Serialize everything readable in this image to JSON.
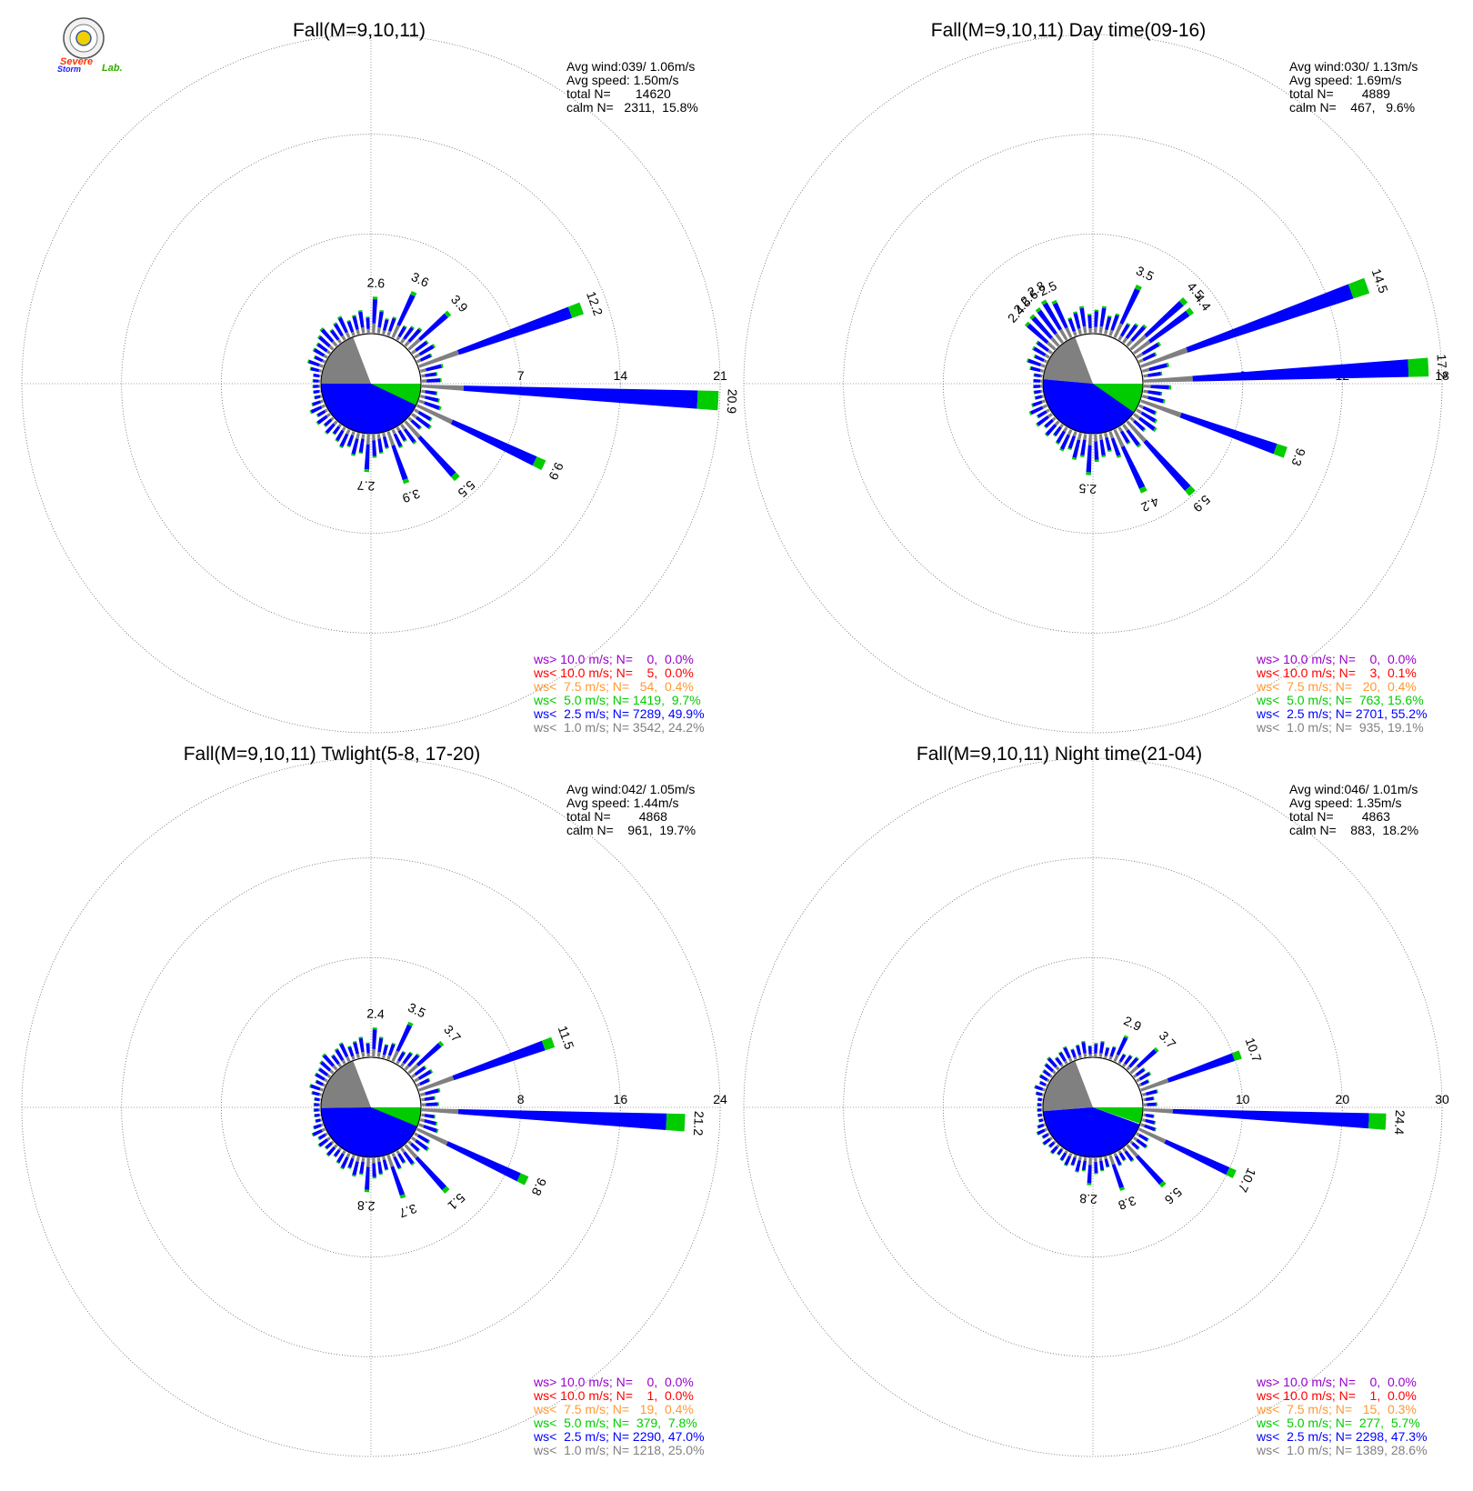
{
  "logo": {
    "word1": "Severe",
    "word2": "Storm",
    "word3": "Lab."
  },
  "colors": {
    "gray": "#808080",
    "blue": "#0000ff",
    "green": "#00cc00",
    "orange": "#ff9933",
    "red": "#ff0000",
    "purple": "#9900cc",
    "black": "#000000"
  },
  "chart_data": [
    {
      "type": "windrose",
      "title": "Fall(M=9,10,11)",
      "stats": [
        "Avg wind:039/ 1.06m/s",
        "Avg speed: 1.50m/s",
        "total N=       14620",
        "calm N=   2311,  15.8%"
      ],
      "rings": [
        7,
        14,
        21
      ],
      "ring_labels": [
        "7",
        "14",
        "21"
      ],
      "labeled_bars": [
        {
          "dir": 16,
          "value": 2.6,
          "label": "2.6"
        },
        {
          "dir": 20,
          "value": 3.6,
          "label": "3.6"
        },
        {
          "dir": 24,
          "value": 3.9,
          "label": "3.9"
        },
        {
          "dir": 28,
          "value": 12.2,
          "label": "12.2"
        },
        {
          "dir": 32,
          "value": 20.9,
          "label": "20.9"
        },
        {
          "dir": 36,
          "value": 9.9,
          "label": "9.9"
        },
        {
          "dir": 40,
          "value": 5.5,
          "label": "5.5"
        },
        {
          "dir": 44,
          "value": 3.9,
          "label": "3.9"
        },
        {
          "dir": 48,
          "value": 2.7,
          "label": "2.7"
        }
      ],
      "calm_shares": {
        "gray": 24.2,
        "blue": 49.9,
        "green": 9.7
      },
      "legend": [
        {
          "color": "purple",
          "text": "ws> 10.0 m/s; N=    0,  0.0%"
        },
        {
          "color": "red",
          "text": "ws< 10.0 m/s; N=    5,  0.0%"
        },
        {
          "color": "orange",
          "text": "ws<  7.5 m/s; N=   54,  0.4%"
        },
        {
          "color": "green",
          "text": "ws<  5.0 m/s; N= 1419,  9.7%"
        },
        {
          "color": "blue",
          "text": "ws<  2.5 m/s; N= 7289, 49.9%"
        },
        {
          "color": "gray",
          "text": "ws<  1.0 m/s; N= 3542, 24.2%"
        }
      ]
    },
    {
      "type": "windrose",
      "title": "Fall(M=9,10,11) Day time(09-16)",
      "stats": [
        "Avg wind:030/ 1.13m/s",
        "Avg speed: 1.69m/s",
        "total N=        4889",
        "calm N=    467,   9.6%"
      ],
      "rings": [
        6,
        12,
        18
      ],
      "ring_labels": [
        "6",
        "12",
        "18"
      ],
      "labeled_bars": [
        {
          "dir": 7,
          "value": 2.4,
          "label": "2.4"
        },
        {
          "dir": 8,
          "value": 2.5,
          "label": "2.5"
        },
        {
          "dir": 9,
          "value": 2.6,
          "label": "2.6"
        },
        {
          "dir": 10,
          "value": 2.8,
          "label": "2.8"
        },
        {
          "dir": 11,
          "value": 2.5,
          "label": "2.5"
        },
        {
          "dir": 20,
          "value": 3.5,
          "label": "3.5"
        },
        {
          "dir": 24,
          "value": 4.5,
          "label": "4.5"
        },
        {
          "dir": 25,
          "value": 4.4,
          "label": "4.4"
        },
        {
          "dir": 28,
          "value": 14.5,
          "label": "14.5"
        },
        {
          "dir": 31,
          "value": 17.2,
          "label": "17.2"
        },
        {
          "dir": 35,
          "value": 9.3,
          "label": "9.3"
        },
        {
          "dir": 40,
          "value": 5.9,
          "label": "5.9"
        },
        {
          "dir": 43,
          "value": 4.2,
          "label": "4.2"
        },
        {
          "dir": 48,
          "value": 2.5,
          "label": "2.5"
        }
      ],
      "calm_shares": {
        "gray": 19.1,
        "blue": 55.2,
        "green": 15.6
      },
      "legend": [
        {
          "color": "purple",
          "text": "ws> 10.0 m/s; N=    0,  0.0%"
        },
        {
          "color": "red",
          "text": "ws< 10.0 m/s; N=    3,  0.1%"
        },
        {
          "color": "orange",
          "text": "ws<  7.5 m/s; N=   20,  0.4%"
        },
        {
          "color": "green",
          "text": "ws<  5.0 m/s; N=  763, 15.6%"
        },
        {
          "color": "blue",
          "text": "ws<  2.5 m/s; N= 2701, 55.2%"
        },
        {
          "color": "gray",
          "text": "ws<  1.0 m/s; N=  935, 19.1%"
        }
      ]
    },
    {
      "type": "windrose",
      "title": "Fall(M=9,10,11) Twlight(5-8, 17-20)",
      "stats": [
        "Avg wind:042/ 1.05m/s",
        "Avg speed: 1.44m/s",
        "total N=        4868",
        "calm N=    961,  19.7%"
      ],
      "rings": [
        8,
        16,
        24
      ],
      "ring_labels": [
        "8",
        "16",
        "24"
      ],
      "labeled_bars": [
        {
          "dir": 16,
          "value": 2.4,
          "label": "2.4"
        },
        {
          "dir": 20,
          "value": 3.5,
          "label": "3.5"
        },
        {
          "dir": 24,
          "value": 3.7,
          "label": "3.7"
        },
        {
          "dir": 28,
          "value": 11.5,
          "label": "11.5"
        },
        {
          "dir": 32,
          "value": 21.2,
          "label": "21.2"
        },
        {
          "dir": 36,
          "value": 9.8,
          "label": "9.8"
        },
        {
          "dir": 40,
          "value": 5.1,
          "label": "5.1"
        },
        {
          "dir": 44,
          "value": 3.7,
          "label": "3.7"
        },
        {
          "dir": 48,
          "value": 2.8,
          "label": "2.8"
        }
      ],
      "calm_shares": {
        "gray": 25.0,
        "blue": 47.0,
        "green": 7.8
      },
      "legend": [
        {
          "color": "purple",
          "text": "ws> 10.0 m/s; N=    0,  0.0%"
        },
        {
          "color": "red",
          "text": "ws< 10.0 m/s; N=    1,  0.0%"
        },
        {
          "color": "orange",
          "text": "ws<  7.5 m/s; N=   19,  0.4%"
        },
        {
          "color": "green",
          "text": "ws<  5.0 m/s; N=  379,  7.8%"
        },
        {
          "color": "blue",
          "text": "ws<  2.5 m/s; N= 2290, 47.0%"
        },
        {
          "color": "gray",
          "text": "ws<  1.0 m/s; N= 1218, 25.0%"
        }
      ]
    },
    {
      "type": "windrose",
      "title": "Fall(M=9,10,11) Night time(21-04)",
      "stats": [
        "Avg wind:046/ 1.01m/s",
        "Avg speed: 1.35m/s",
        "total N=        4863",
        "calm N=    883,  18.2%"
      ],
      "rings": [
        10,
        20,
        30
      ],
      "ring_labels": [
        "10",
        "20",
        "30"
      ],
      "labeled_bars": [
        {
          "dir": 20,
          "value": 2.9,
          "label": "2.9"
        },
        {
          "dir": 24,
          "value": 3.7,
          "label": "3.7"
        },
        {
          "dir": 28,
          "value": 10.7,
          "label": "10.7"
        },
        {
          "dir": 32,
          "value": 24.4,
          "label": "24.4"
        },
        {
          "dir": 36,
          "value": 10.7,
          "label": "10.7"
        },
        {
          "dir": 40,
          "value": 5.6,
          "label": "5.6"
        },
        {
          "dir": 44,
          "value": 3.8,
          "label": "3.8"
        },
        {
          "dir": 48,
          "value": 2.8,
          "label": "2.8"
        }
      ],
      "calm_shares": {
        "gray": 28.6,
        "blue": 47.3,
        "green": 5.7
      },
      "legend": [
        {
          "color": "purple",
          "text": "ws> 10.0 m/s; N=    0,  0.0%"
        },
        {
          "color": "red",
          "text": "ws< 10.0 m/s; N=    1,  0.0%"
        },
        {
          "color": "orange",
          "text": "ws<  7.5 m/s; N=   15,  0.3%"
        },
        {
          "color": "green",
          "text": "ws<  5.0 m/s; N=  277,  5.7%"
        },
        {
          "color": "blue",
          "text": "ws<  2.5 m/s; N= 2298, 47.3%"
        },
        {
          "color": "gray",
          "text": "ws<  1.0 m/s; N= 1389, 28.6%"
        }
      ]
    }
  ]
}
